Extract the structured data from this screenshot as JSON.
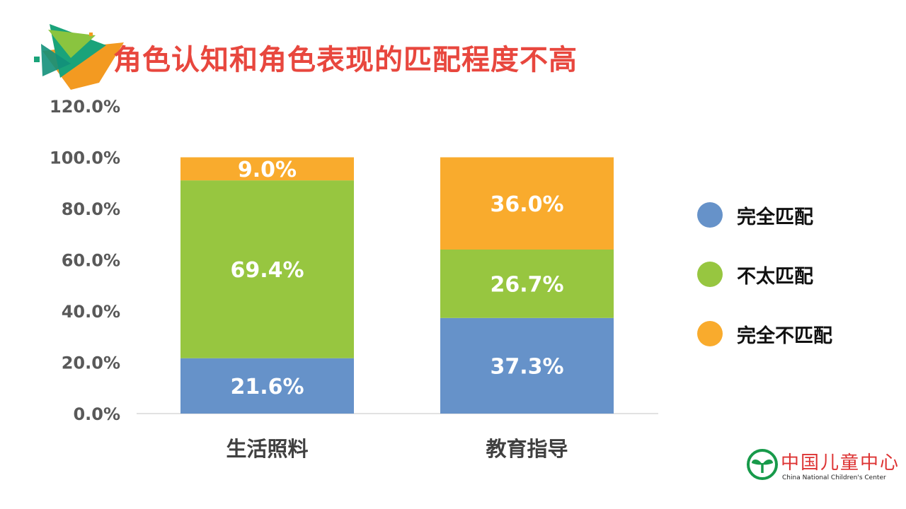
{
  "slide": {
    "title": "角色认知和角色表现的匹配程度不高",
    "accent_colors": [
      "#1aa37a",
      "#f39a21",
      "#8ac43f"
    ]
  },
  "logo": {
    "name_cn": "中国儿童中心",
    "name_en": "China National Children's Center",
    "icon": "sprout-circle-icon",
    "color": "#179a4a"
  },
  "chart_data": {
    "type": "bar",
    "stacked": true,
    "categories": [
      "生活照料",
      "教育指导"
    ],
    "series": [
      {
        "name": "完全匹配",
        "color": "#6692c9",
        "values": [
          21.6,
          37.3
        ],
        "labels": [
          "21.6%",
          "37.3%"
        ]
      },
      {
        "name": "不太匹配",
        "color": "#97c640",
        "values": [
          69.4,
          26.7
        ],
        "labels": [
          "69.4%",
          "26.7%"
        ]
      },
      {
        "name": "完全不匹配",
        "color": "#f9ab2d",
        "values": [
          9.0,
          36.0
        ],
        "labels": [
          "9.0%",
          "36.0%"
        ]
      }
    ],
    "ylim": [
      0,
      120
    ],
    "yticks": [
      "0.0%",
      "20.0%",
      "40.0%",
      "60.0%",
      "80.0%",
      "100.0%",
      "120.0%"
    ],
    "grid": false,
    "legend_position": "right"
  }
}
